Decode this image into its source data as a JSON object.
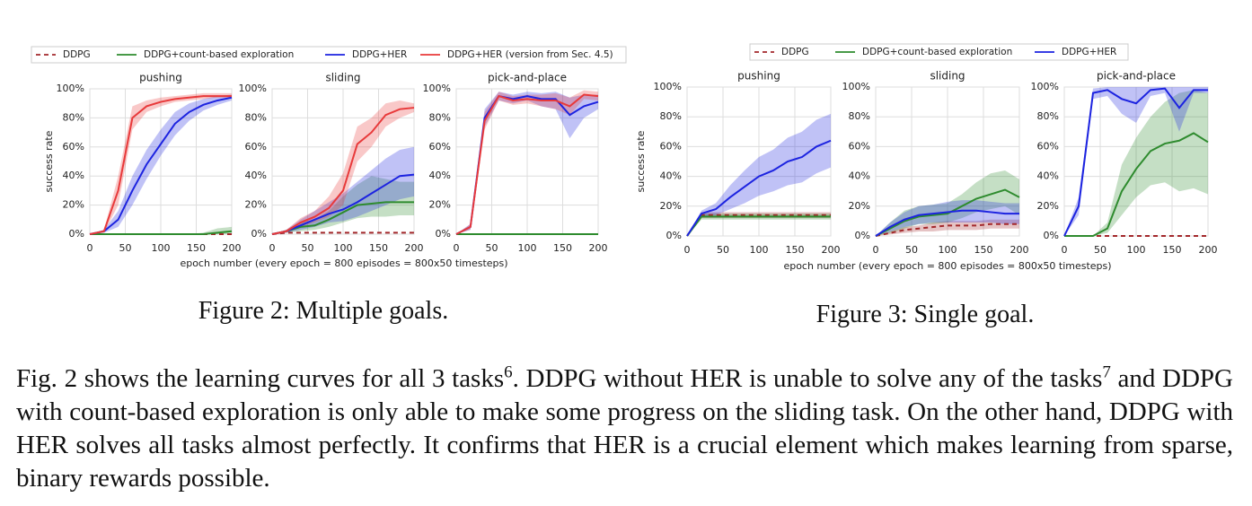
{
  "chart_data": [
    {
      "type": "line",
      "ylabel": "success rate",
      "xlabel": "epoch number (every epoch = 800 episodes = 800x50 timesteps)",
      "caption": "Figure 2: Multiple goals.",
      "legend": [
        {
          "name": "DDPG",
          "color": "#a3282b",
          "dash": true
        },
        {
          "name": "DDPG+count-based exploration",
          "color": "#2e8b2e",
          "dash": false
        },
        {
          "name": "DDPG+HER",
          "color": "#1c23e0",
          "dash": false
        },
        {
          "name": "DDPG+HER (version from Sec. 4.5)",
          "color": "#e8393a",
          "dash": false
        }
      ],
      "x": [
        0,
        20,
        40,
        60,
        80,
        100,
        120,
        140,
        160,
        180,
        200
      ],
      "xlim": [
        0,
        200
      ],
      "ylim": [
        0,
        100
      ],
      "xticks": [
        0,
        50,
        100,
        150,
        200
      ],
      "yticks": [
        {
          "value": 0,
          "label": "0%"
        },
        {
          "value": 20,
          "label": "20%"
        },
        {
          "value": 40,
          "label": "40%"
        },
        {
          "value": 60,
          "label": "60%"
        },
        {
          "value": 80,
          "label": "80%"
        },
        {
          "value": 100,
          "label": "100%"
        }
      ],
      "panels": [
        {
          "title": "pushing",
          "series": [
            {
              "values": [
                0,
                0,
                0,
                0,
                0,
                0,
                0,
                0,
                0,
                0,
                0
              ]
            },
            {
              "values": [
                0,
                0,
                0,
                0,
                0,
                0,
                0,
                0,
                0,
                1,
                2
              ],
              "lower": [
                0,
                0,
                0,
                0,
                0,
                0,
                0,
                0,
                0,
                0,
                0
              ],
              "upper": [
                0,
                0,
                0,
                0,
                0,
                0,
                0,
                0,
                1,
                4,
                5
              ]
            },
            {
              "values": [
                0,
                2,
                10,
                30,
                48,
                62,
                76,
                84,
                89,
                92,
                94
              ],
              "lower": [
                0,
                1,
                5,
                20,
                38,
                54,
                68,
                78,
                85,
                89,
                92
              ],
              "upper": [
                0,
                3,
                16,
                40,
                58,
                72,
                84,
                90,
                93,
                95,
                96
              ]
            },
            {
              "values": [
                0,
                2,
                30,
                80,
                88,
                91,
                93,
                94,
                95,
                95,
                95
              ],
              "lower": [
                0,
                1,
                20,
                72,
                84,
                88,
                91,
                92,
                93,
                94,
                94
              ],
              "upper": [
                0,
                3,
                40,
                88,
                92,
                94,
                95,
                96,
                97,
                97,
                97
              ]
            }
          ]
        },
        {
          "title": "sliding",
          "series": [
            {
              "values": [
                0,
                1,
                1,
                1,
                1,
                1,
                1,
                1,
                1,
                1,
                1
              ]
            },
            {
              "values": [
                0,
                2,
                5,
                6,
                10,
                15,
                20,
                21,
                22,
                22,
                22
              ],
              "lower": [
                0,
                1,
                2,
                3,
                5,
                8,
                11,
                12,
                12,
                13,
                13
              ],
              "upper": [
                0,
                3,
                8,
                10,
                16,
                26,
                34,
                40,
                38,
                36,
                36
              ]
            },
            {
              "values": [
                0,
                2,
                6,
                10,
                14,
                17,
                22,
                28,
                34,
                40,
                41
              ],
              "lower": [
                0,
                1,
                3,
                5,
                8,
                9,
                12,
                16,
                20,
                24,
                26
              ],
              "upper": [
                0,
                3,
                10,
                16,
                22,
                28,
                36,
                44,
                52,
                58,
                60
              ]
            },
            {
              "values": [
                0,
                2,
                8,
                12,
                18,
                30,
                62,
                70,
                82,
                86,
                87
              ],
              "lower": [
                0,
                1,
                5,
                8,
                12,
                20,
                50,
                60,
                74,
                80,
                84
              ],
              "upper": [
                0,
                3,
                11,
                16,
                26,
                42,
                74,
                80,
                90,
                92,
                90
              ]
            }
          ]
        },
        {
          "title": "pick-and-place",
          "series": [
            {
              "values": [
                0,
                0,
                0,
                0,
                0,
                0,
                0,
                0,
                0,
                0,
                0
              ]
            },
            {
              "values": [
                0,
                0,
                0,
                0,
                0,
                0,
                0,
                0,
                0,
                0,
                0
              ]
            },
            {
              "values": [
                0,
                5,
                80,
                95,
                93,
                95,
                93,
                93,
                82,
                88,
                91
              ],
              "lower": [
                0,
                3,
                74,
                92,
                90,
                92,
                88,
                86,
                66,
                80,
                86
              ],
              "upper": [
                0,
                7,
                86,
                98,
                96,
                98,
                97,
                98,
                94,
                96,
                96
              ]
            },
            {
              "values": [
                0,
                5,
                78,
                95,
                92,
                93,
                92,
                92,
                88,
                96,
                95
              ],
              "lower": [
                0,
                3,
                72,
                92,
                89,
                90,
                88,
                86,
                82,
                93,
                92
              ],
              "upper": [
                0,
                7,
                84,
                98,
                95,
                96,
                96,
                97,
                94,
                99,
                98
              ]
            }
          ]
        }
      ]
    },
    {
      "type": "line",
      "ylabel": "success rate",
      "xlabel": "epoch number (every epoch = 800 episodes = 800x50 timesteps)",
      "caption": "Figure 3: Single goal.",
      "legend": [
        {
          "name": "DDPG",
          "color": "#a3282b",
          "dash": true
        },
        {
          "name": "DDPG+count-based exploration",
          "color": "#2e8b2e",
          "dash": false
        },
        {
          "name": "DDPG+HER",
          "color": "#1c23e0",
          "dash": false
        }
      ],
      "x": [
        0,
        20,
        40,
        60,
        80,
        100,
        120,
        140,
        160,
        180,
        200
      ],
      "xlim": [
        0,
        200
      ],
      "ylim": [
        0,
        100
      ],
      "xticks": [
        0,
        50,
        100,
        150,
        200
      ],
      "yticks": [
        {
          "value": 0,
          "label": "0%"
        },
        {
          "value": 20,
          "label": "20%"
        },
        {
          "value": 40,
          "label": "40%"
        },
        {
          "value": 60,
          "label": "60%"
        },
        {
          "value": 80,
          "label": "80%"
        },
        {
          "value": 100,
          "label": "100%"
        }
      ],
      "panels": [
        {
          "title": "pushing",
          "series": [
            {
              "values": [
                0,
                14,
                14,
                14,
                14,
                14,
                14,
                14,
                14,
                14,
                14
              ],
              "lower": [
                0,
                12,
                12,
                12,
                12,
                12,
                12,
                12,
                12,
                12,
                12
              ],
              "upper": [
                0,
                16,
                16,
                16,
                16,
                16,
                16,
                16,
                16,
                16,
                16
              ]
            },
            {
              "values": [
                0,
                13,
                13,
                13,
                13,
                13,
                13,
                13,
                13,
                13,
                13
              ],
              "lower": [
                0,
                11,
                11,
                11,
                11,
                11,
                11,
                11,
                11,
                11,
                11
              ],
              "upper": [
                0,
                15,
                15,
                15,
                15,
                15,
                15,
                15,
                15,
                15,
                15
              ]
            },
            {
              "values": [
                0,
                15,
                18,
                26,
                33,
                40,
                44,
                50,
                53,
                60,
                64
              ],
              "lower": [
                0,
                13,
                14,
                18,
                22,
                27,
                30,
                34,
                36,
                42,
                46
              ],
              "upper": [
                0,
                17,
                22,
                34,
                44,
                53,
                58,
                66,
                70,
                78,
                82
              ]
            }
          ]
        },
        {
          "title": "sliding",
          "series": [
            {
              "values": [
                0,
                2,
                4,
                5,
                6,
                7,
                7,
                7,
                8,
                8,
                8
              ],
              "lower": [
                0,
                1,
                2,
                3,
                3,
                4,
                4,
                4,
                5,
                5,
                5
              ],
              "upper": [
                0,
                3,
                6,
                7,
                9,
                10,
                10,
                10,
                11,
                11,
                11
              ]
            },
            {
              "values": [
                0,
                5,
                10,
                13,
                14,
                15,
                20,
                25,
                28,
                31,
                26
              ],
              "lower": [
                0,
                2,
                5,
                8,
                8,
                9,
                12,
                16,
                18,
                20,
                14
              ],
              "upper": [
                0,
                9,
                17,
                20,
                21,
                22,
                28,
                36,
                42,
                44,
                38
              ]
            },
            {
              "values": [
                0,
                6,
                11,
                14,
                15,
                16,
                17,
                17,
                16,
                15,
                15
              ],
              "lower": [
                0,
                3,
                6,
                8,
                9,
                9,
                9,
                9,
                9,
                8,
                8
              ],
              "upper": [
                0,
                9,
                16,
                20,
                21,
                23,
                24,
                24,
                23,
                22,
                22
              ]
            }
          ]
        },
        {
          "title": "pick-and-place",
          "series": [
            {
              "values": [
                0,
                0,
                0,
                0,
                0,
                0,
                0,
                0,
                0,
                0,
                0
              ]
            },
            {
              "values": [
                0,
                0,
                0,
                5,
                30,
                45,
                57,
                62,
                64,
                69,
                63
              ],
              "lower": [
                0,
                0,
                0,
                2,
                14,
                26,
                34,
                36,
                30,
                32,
                28
              ],
              "upper": [
                0,
                0,
                0,
                9,
                48,
                66,
                80,
                90,
                96,
                98,
                96
              ]
            },
            {
              "values": [
                0,
                20,
                96,
                98,
                92,
                89,
                98,
                99,
                86,
                98,
                98
              ],
              "lower": [
                0,
                14,
                92,
                94,
                82,
                76,
                94,
                96,
                70,
                96,
                96
              ],
              "upper": [
                0,
                26,
                99,
                100,
                100,
                100,
                100,
                100,
                100,
                100,
                100
              ]
            }
          ]
        }
      ]
    }
  ],
  "paragraph": [
    "Fig. 2 shows the learning curves for all 3 tasks",
    "6",
    ". DDPG without HER is unable to solve any of the tasks",
    "7",
    " and DDPG with count-based exploration is only able to make some progress on the sliding task. On the other hand, DDPG with HER solves all tasks almost perfectly. It confirms that HER is a crucial element which makes learning from sparse, binary rewards possible."
  ]
}
